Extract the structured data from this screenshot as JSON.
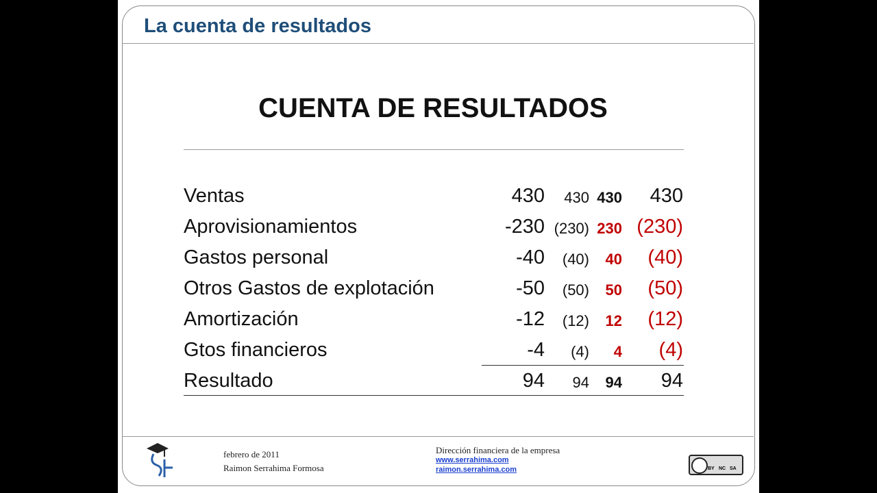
{
  "header": {
    "title": "La cuenta de resultados"
  },
  "slide_title": "CUENTA DE RESULTADOS",
  "table": {
    "rows": [
      [
        "Ventas",
        "430",
        "430",
        "430",
        "430"
      ],
      [
        "Aprovisionamientos",
        "-230",
        "(230)",
        "230",
        "(230)"
      ],
      [
        "Gastos personal",
        "-40",
        "(40)",
        "40",
        "(40)"
      ],
      [
        "Otros Gastos de explotación",
        "-50",
        "(50)",
        "50",
        "(50)"
      ],
      [
        "Amortización",
        "-12",
        "(12)",
        "12",
        "(12)"
      ],
      [
        "Gtos financieros",
        "-4",
        "(4)",
        "4",
        "(4)"
      ],
      [
        "Resultado",
        "94",
        "94",
        "94",
        "94"
      ]
    ]
  },
  "footer": {
    "date": "febrero de 2011",
    "author": "Raimon Serrahima Formosa",
    "course": "Dirección financiera de la empresa",
    "links": [
      "www.serrahima.com",
      "raimon.serrahima.com"
    ],
    "license": [
      "BY",
      "NC",
      "SA"
    ]
  }
}
